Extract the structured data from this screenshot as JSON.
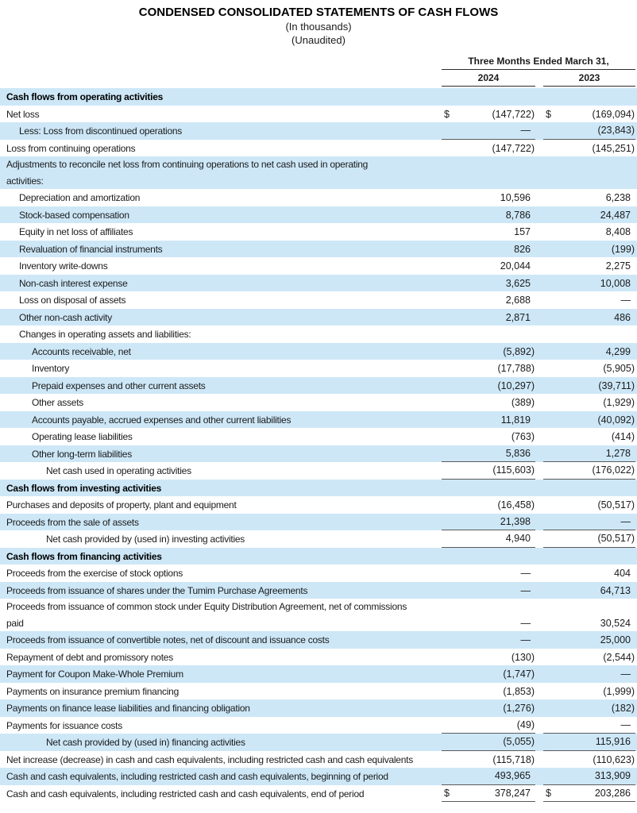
{
  "colors": {
    "stripe_blue": "#cde7f7",
    "value_line": "#5a5a5a",
    "header_line": "#2b2b2b",
    "text": "#1b1b1b"
  },
  "header": {
    "title": "CONDENSED CONSOLIDATED STATEMENTS OF CASH FLOWS",
    "subtitle1": "(In thousands)",
    "subtitle2": "(Unaudited)"
  },
  "period": {
    "label": "Three Months Ended March 31,",
    "years": [
      "2024",
      "2023"
    ]
  },
  "table": {
    "dollar_symbol": "$",
    "rows": [
      {
        "label": "Cash flows from operating activities",
        "indent": 0,
        "bold": true,
        "v1": null,
        "v2": null,
        "d": false,
        "u": false
      },
      {
        "label": "Net loss",
        "indent": 0,
        "bold": false,
        "v1": "(147,722)",
        "v2": "(169,094)",
        "d": true,
        "u": false
      },
      {
        "label": "Less: Loss from discontinued operations",
        "indent": 1,
        "bold": false,
        "v1": "—",
        "v2": "(23,843)",
        "d": false,
        "u": true
      },
      {
        "label": "Loss from continuing operations",
        "indent": 0,
        "bold": false,
        "v1": "(147,722)",
        "v2": "(145,251)",
        "d": false,
        "u": false
      },
      {
        "label": "Adjustments to reconcile net loss from continuing operations to net cash used in operating\nactivities:",
        "indent": 0,
        "bold": false,
        "v1": null,
        "v2": null,
        "d": false,
        "u": false
      },
      {
        "label": "Depreciation and amortization",
        "indent": 1,
        "bold": false,
        "v1": "10,596",
        "v2": "6,238",
        "d": false,
        "u": false
      },
      {
        "label": "Stock-based compensation",
        "indent": 1,
        "bold": false,
        "v1": "8,786",
        "v2": "24,487",
        "d": false,
        "u": false
      },
      {
        "label": "Equity in net loss of affiliates",
        "indent": 1,
        "bold": false,
        "v1": "157",
        "v2": "8,408",
        "d": false,
        "u": false
      },
      {
        "label": "Revaluation of financial instruments",
        "indent": 1,
        "bold": false,
        "v1": "826",
        "v2": "(199)",
        "d": false,
        "u": false
      },
      {
        "label": "Inventory write-downs",
        "indent": 1,
        "bold": false,
        "v1": "20,044",
        "v2": "2,275",
        "d": false,
        "u": false
      },
      {
        "label": "Non-cash interest expense",
        "indent": 1,
        "bold": false,
        "v1": "3,625",
        "v2": "10,008",
        "d": false,
        "u": false
      },
      {
        "label": "Loss on disposal of assets",
        "indent": 1,
        "bold": false,
        "v1": "2,688",
        "v2": "—",
        "d": false,
        "u": false
      },
      {
        "label": "Other non-cash activity",
        "indent": 1,
        "bold": false,
        "v1": "2,871",
        "v2": "486",
        "d": false,
        "u": false
      },
      {
        "label": "Changes in operating assets and liabilities:",
        "indent": 1,
        "bold": false,
        "v1": null,
        "v2": null,
        "d": false,
        "u": false
      },
      {
        "label": "Accounts receivable, net",
        "indent": 2,
        "bold": false,
        "v1": "(5,892)",
        "v2": "4,299",
        "d": false,
        "u": false
      },
      {
        "label": "Inventory",
        "indent": 2,
        "bold": false,
        "v1": "(17,788)",
        "v2": "(5,905)",
        "d": false,
        "u": false
      },
      {
        "label": "Prepaid expenses and other current assets",
        "indent": 2,
        "bold": false,
        "v1": "(10,297)",
        "v2": "(39,711)",
        "d": false,
        "u": false
      },
      {
        "label": "Other assets",
        "indent": 2,
        "bold": false,
        "v1": "(389)",
        "v2": "(1,929)",
        "d": false,
        "u": false
      },
      {
        "label": "Accounts payable, accrued expenses and other current liabilities",
        "indent": 2,
        "bold": false,
        "v1": "11,819",
        "v2": "(40,092)",
        "d": false,
        "u": false
      },
      {
        "label": "Operating lease liabilities",
        "indent": 2,
        "bold": false,
        "v1": "(763)",
        "v2": "(414)",
        "d": false,
        "u": false
      },
      {
        "label": "Other long-term liabilities",
        "indent": 2,
        "bold": false,
        "v1": "5,836",
        "v2": "1,278",
        "d": false,
        "u": true
      },
      {
        "label": "Net cash used in operating activities",
        "indent": 3,
        "bold": false,
        "v1": "(115,603)",
        "v2": "(176,022)",
        "d": false,
        "u": true
      },
      {
        "label": "Cash flows from investing activities",
        "indent": 0,
        "bold": true,
        "v1": null,
        "v2": null,
        "d": false,
        "u": false
      },
      {
        "label": "Purchases and deposits of property, plant and equipment",
        "indent": 0,
        "bold": false,
        "v1": "(16,458)",
        "v2": "(50,517)",
        "d": false,
        "u": false
      },
      {
        "label": "Proceeds from the sale of assets",
        "indent": 0,
        "bold": false,
        "v1": "21,398",
        "v2": "—",
        "d": false,
        "u": true
      },
      {
        "label": "Net cash provided by (used in) investing activities",
        "indent": 3,
        "bold": false,
        "v1": "4,940",
        "v2": "(50,517)",
        "d": false,
        "u": true
      },
      {
        "label": "Cash flows from financing activities",
        "indent": 0,
        "bold": true,
        "v1": null,
        "v2": null,
        "d": false,
        "u": false
      },
      {
        "label": "Proceeds from the exercise of stock options",
        "indent": 0,
        "bold": false,
        "v1": "—",
        "v2": "404",
        "d": false,
        "u": false
      },
      {
        "label": "Proceeds from issuance of shares under the Tumim Purchase Agreements",
        "indent": 0,
        "bold": false,
        "v1": "—",
        "v2": "64,713",
        "d": false,
        "u": false
      },
      {
        "label": "Proceeds from issuance of common stock under Equity Distribution Agreement, net of commissions\npaid",
        "indent": 0,
        "bold": false,
        "v1": "—",
        "v2": "30,524",
        "d": false,
        "u": false
      },
      {
        "label": "Proceeds from issuance of convertible notes, net of discount and issuance costs",
        "indent": 0,
        "bold": false,
        "v1": "—",
        "v2": "25,000",
        "d": false,
        "u": false
      },
      {
        "label": "Repayment of debt and promissory notes",
        "indent": 0,
        "bold": false,
        "v1": "(130)",
        "v2": "(2,544)",
        "d": false,
        "u": false
      },
      {
        "label": "Payment for Coupon Make-Whole Premium",
        "indent": 0,
        "bold": false,
        "v1": "(1,747)",
        "v2": "—",
        "d": false,
        "u": false
      },
      {
        "label": "Payments on insurance premium financing",
        "indent": 0,
        "bold": false,
        "v1": "(1,853)",
        "v2": "(1,999)",
        "d": false,
        "u": false
      },
      {
        "label": "Payments on finance lease liabilities and financing obligation",
        "indent": 0,
        "bold": false,
        "v1": "(1,276)",
        "v2": "(182)",
        "d": false,
        "u": false
      },
      {
        "label": "Payments for issuance costs",
        "indent": 0,
        "bold": false,
        "v1": "(49)",
        "v2": "—",
        "d": false,
        "u": true
      },
      {
        "label": "Net cash provided by (used in) financing activities",
        "indent": 3,
        "bold": false,
        "v1": "(5,055)",
        "v2": "115,916",
        "d": false,
        "u": true
      },
      {
        "label": "Net increase (decrease) in cash and cash equivalents, including restricted cash and cash equivalents",
        "indent": 0,
        "bold": false,
        "v1": "(115,718)",
        "v2": "(110,623)",
        "d": false,
        "u": false
      },
      {
        "label": "Cash and cash equivalents, including restricted cash and cash equivalents, beginning of period",
        "indent": 0,
        "bold": false,
        "v1": "493,965",
        "v2": "313,909",
        "d": false,
        "u": true
      },
      {
        "label": "Cash and cash equivalents, including restricted cash and cash equivalents, end of period",
        "indent": 0,
        "bold": false,
        "v1": "378,247",
        "v2": "203,286",
        "d": true,
        "u": true
      }
    ]
  }
}
